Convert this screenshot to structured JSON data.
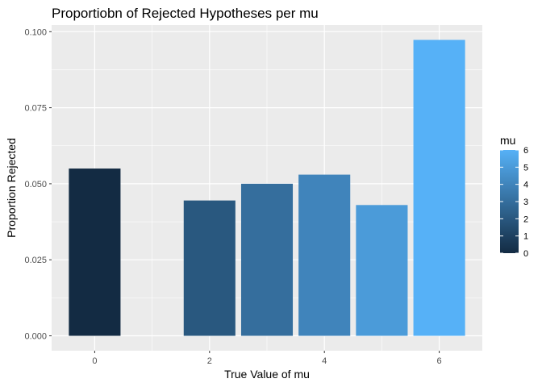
{
  "chart_data": {
    "type": "bar",
    "title": "Proportiobn of Rejected Hypotheses per mu",
    "xlabel": "True Value of mu",
    "ylabel": "Proportion Rejected",
    "x": [
      0,
      2,
      3,
      4,
      5,
      6
    ],
    "values": [
      0.055,
      0.0445,
      0.05,
      0.053,
      0.043,
      0.0973
    ],
    "xlim": [
      -0.75,
      6.75
    ],
    "ylim": [
      -0.0049,
      0.1022
    ],
    "x_ticks": [
      0,
      2,
      4,
      6
    ],
    "x_tick_labels": [
      "0",
      "2",
      "4",
      "6"
    ],
    "y_ticks": [
      0,
      0.025,
      0.05,
      0.075,
      0.1
    ],
    "y_tick_labels": [
      "0.000",
      "0.025",
      "0.050",
      "0.075",
      "0.100"
    ],
    "grid": true,
    "legend": {
      "title": "mu",
      "placement": "right",
      "type": "colorbar",
      "range": [
        0,
        6
      ],
      "breaks": [
        0,
        1,
        2,
        3,
        4,
        5,
        6
      ],
      "labels": [
        "0",
        "1",
        "2",
        "3",
        "4",
        "5",
        "6"
      ],
      "low_color": "#132B43",
      "high_color": "#56B1F7"
    },
    "panel_background": "#EBEBEB",
    "grid_color": "#FFFFFF"
  }
}
